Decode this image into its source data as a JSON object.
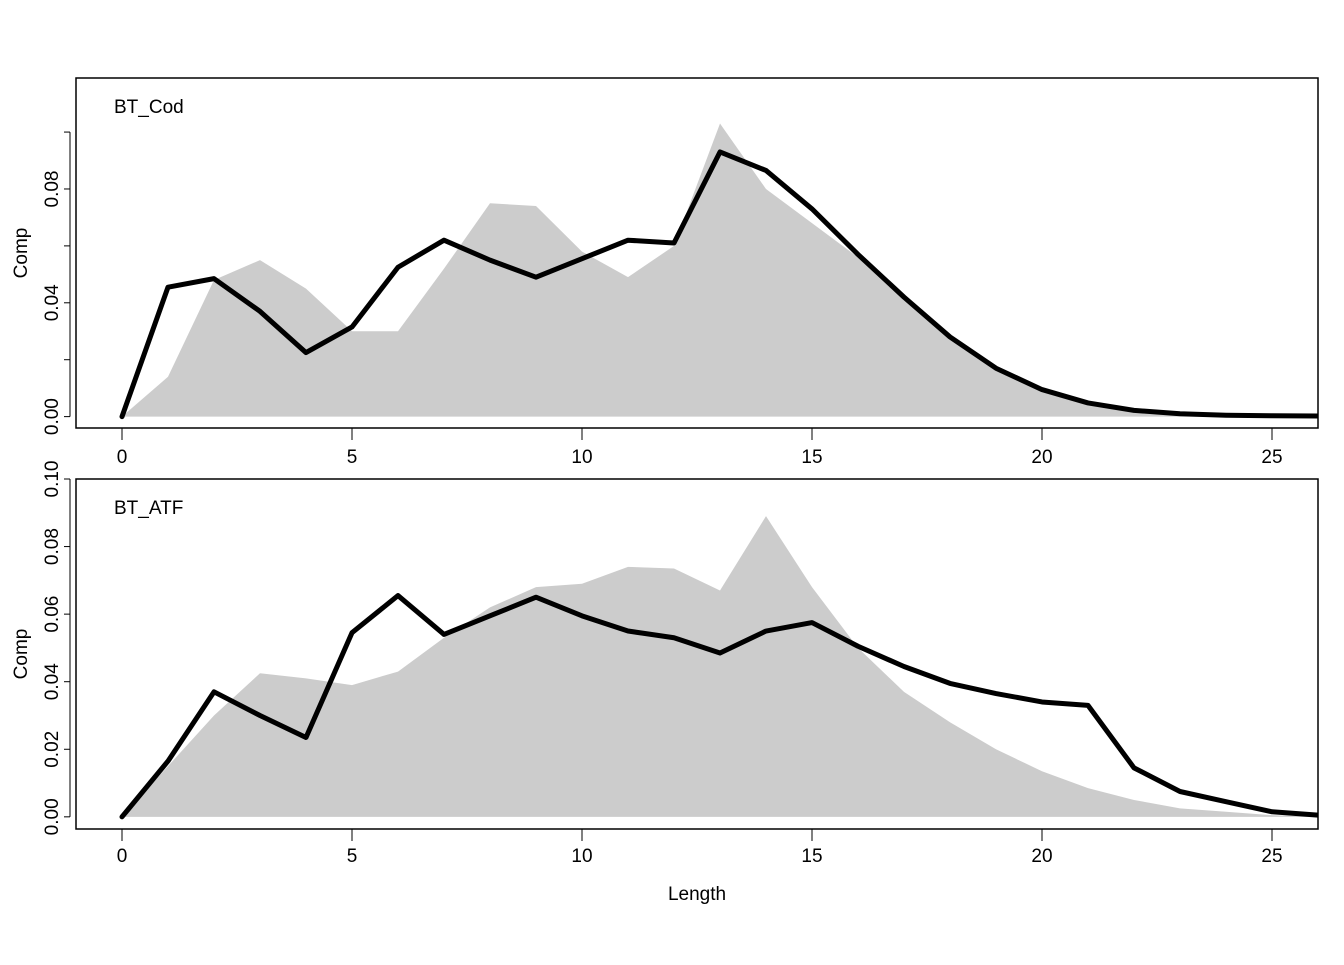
{
  "chart_data": [
    {
      "type": "area",
      "panel_label": "BT_Cod",
      "xlabel": "",
      "ylabel": "Comp",
      "xlim": [
        -1,
        26
      ],
      "ylim": [
        -0.004,
        0.119
      ],
      "x_ticks": [
        0,
        5,
        10,
        15,
        20,
        25
      ],
      "y_ticks": [
        0.0,
        0.04,
        0.08
      ],
      "y_tick_labels": [
        "0.00",
        "0.04",
        "0.08"
      ],
      "y_minor_ticks": [
        0.02,
        0.06,
        0.1
      ],
      "x": [
        0,
        1,
        2,
        3,
        4,
        5,
        6,
        7,
        8,
        9,
        10,
        11,
        12,
        13,
        14,
        15,
        16,
        17,
        18,
        19,
        20,
        21,
        22,
        23,
        24,
        25,
        26
      ],
      "series": [
        {
          "style": "area",
          "color": "#cccccc",
          "values": [
            0.0,
            0.014,
            0.048,
            0.055,
            0.045,
            0.03,
            0.03,
            0.052,
            0.075,
            0.074,
            0.058,
            0.049,
            0.06,
            0.103,
            0.08,
            0.068,
            0.056,
            0.042,
            0.028,
            0.017,
            0.009,
            0.005,
            0.002,
            0.001,
            0.0003,
            0.0001,
            0.0
          ]
        },
        {
          "style": "line",
          "color": "#000000",
          "values": [
            0.0,
            0.0455,
            0.0485,
            0.037,
            0.0225,
            0.0315,
            0.0525,
            0.062,
            0.055,
            0.049,
            0.0555,
            0.062,
            0.061,
            0.093,
            0.0865,
            0.073,
            0.057,
            0.042,
            0.028,
            0.017,
            0.0095,
            0.0048,
            0.0022,
            0.001,
            0.0005,
            0.0003,
            0.0002
          ]
        }
      ]
    },
    {
      "type": "area",
      "panel_label": "BT_ATF",
      "xlabel": "Length",
      "ylabel": "Comp",
      "xlim": [
        -1,
        26
      ],
      "ylim": [
        -0.0036,
        0.1
      ],
      "x_ticks": [
        0,
        5,
        10,
        15,
        20,
        25
      ],
      "y_ticks": [
        0.0,
        0.02,
        0.04,
        0.06,
        0.08,
        0.1
      ],
      "y_tick_labels": [
        "0.00",
        "0.02",
        "0.04",
        "0.06",
        "0.08",
        "0.10"
      ],
      "x": [
        0,
        1,
        2,
        3,
        4,
        5,
        6,
        7,
        8,
        9,
        10,
        11,
        12,
        13,
        14,
        15,
        16,
        17,
        18,
        19,
        20,
        21,
        22,
        23,
        24,
        25,
        26
      ],
      "series": [
        {
          "style": "area",
          "color": "#cccccc",
          "values": [
            0.0,
            0.015,
            0.03,
            0.0425,
            0.041,
            0.039,
            0.043,
            0.053,
            0.062,
            0.068,
            0.069,
            0.074,
            0.0735,
            0.067,
            0.089,
            0.068,
            0.05,
            0.037,
            0.028,
            0.02,
            0.0135,
            0.0085,
            0.005,
            0.0025,
            0.0015,
            0.0005,
            0.0
          ]
        },
        {
          "style": "line",
          "color": "#000000",
          "values": [
            0.0,
            0.0165,
            0.037,
            0.03,
            0.0235,
            0.0545,
            0.0655,
            0.054,
            0.0595,
            0.065,
            0.0595,
            0.055,
            0.053,
            0.0485,
            0.055,
            0.0575,
            0.0505,
            0.0445,
            0.0395,
            0.0365,
            0.034,
            0.033,
            0.0145,
            0.0075,
            0.0045,
            0.0015,
            0.0005
          ]
        }
      ]
    }
  ]
}
